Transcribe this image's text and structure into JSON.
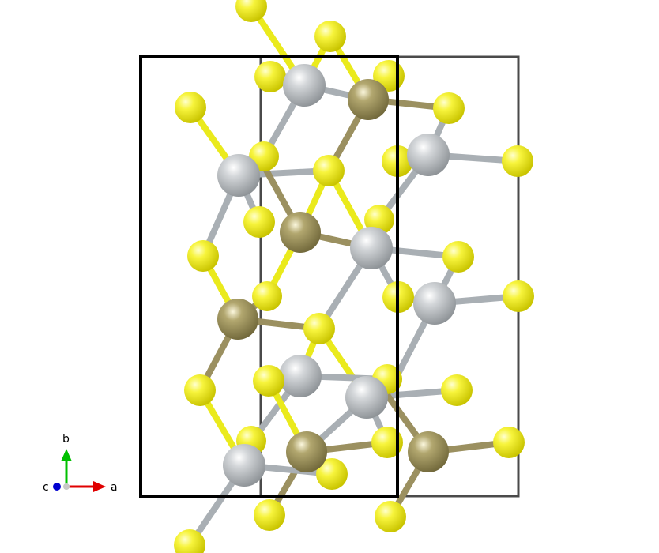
{
  "axes": {
    "a_label": "a",
    "b_label": "b",
    "c_label": "c",
    "a_color": "#e00000",
    "b_color": "#00c000",
    "c_color": "#0000d0"
  },
  "colors": {
    "background": "#ffffff",
    "cell_edge": "#000000",
    "atom_yellow": "#f2f02a",
    "atom_silver": "#b9bec2",
    "atom_olive": "#9f9561",
    "bond_yellow": "#eaea1c",
    "bond_silver": "#a9afb4",
    "bond_olive": "#9b9060"
  }
}
